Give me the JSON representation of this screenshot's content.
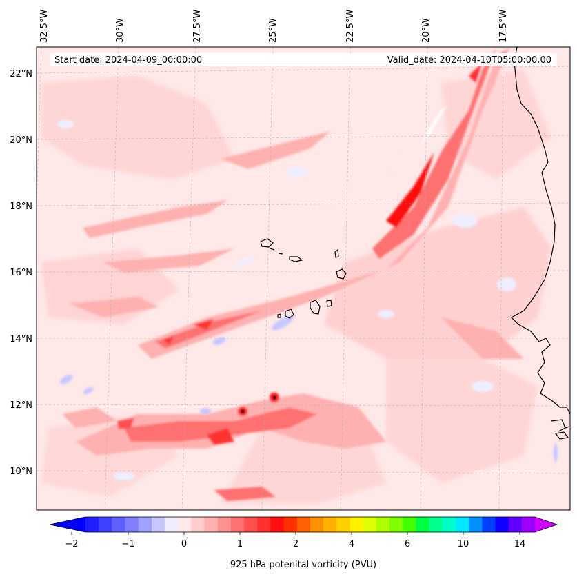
{
  "map": {
    "start_label": "Start date: 2024-04-09_00:00:00",
    "valid_label": "Valid_date: 2024-04-10T05:00:00.00",
    "lon_labels": [
      "32.5°W",
      "30°W",
      "27.5°W",
      "25°W",
      "22.5°W",
      "20°W",
      "17.5°W"
    ],
    "lat_labels": [
      "22°N",
      "20°N",
      "18°N",
      "16°N",
      "14°N",
      "12°N",
      "10°N"
    ]
  },
  "colorbar": {
    "title": "925 hPa potenital vorticity (PVU)",
    "tick_labels": [
      "−2",
      "−1",
      "0",
      "1",
      "2",
      "4",
      "6",
      "10",
      "14"
    ],
    "colors": [
      "#0000ff",
      "#2020ff",
      "#4040ff",
      "#6060ff",
      "#8080ff",
      "#a0a0ff",
      "#c8c8ff",
      "#eeeeff",
      "#ffe8e8",
      "#ffcccc",
      "#ffb0b0",
      "#ff9090",
      "#ff7070",
      "#ff5050",
      "#ff3030",
      "#ff1010",
      "#ff3000",
      "#ff6000",
      "#ff9000",
      "#ffb000",
      "#ffd000",
      "#fff000",
      "#e0ff00",
      "#b0ff00",
      "#80ff00",
      "#40ff00",
      "#00ff40",
      "#00ff90",
      "#00ffc8",
      "#00e8ff",
      "#0090ff",
      "#0040ff",
      "#1000ff",
      "#6000ff",
      "#a000ff",
      "#d000ff"
    ]
  }
}
